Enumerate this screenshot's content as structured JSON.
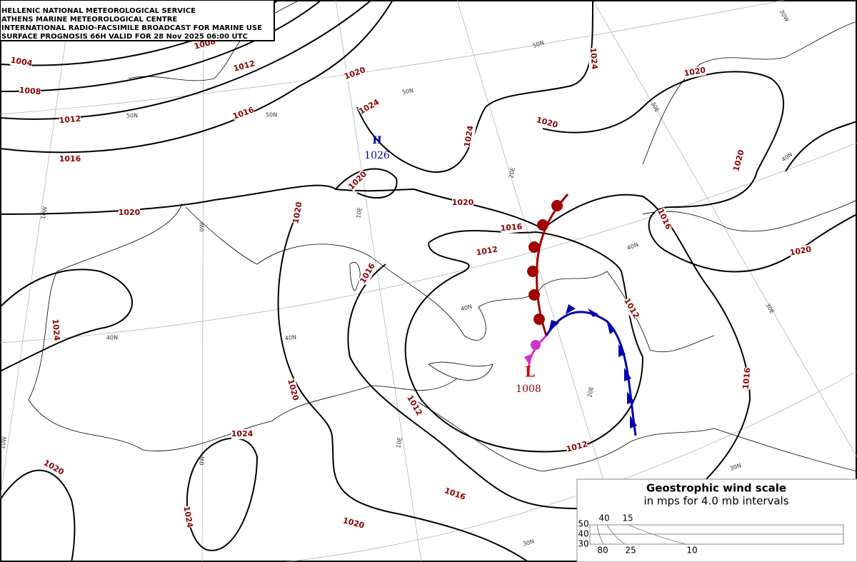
{
  "header": {
    "lines": [
      "HELLENIC NATIONAL METEOROLOGICAL SERVICE",
      "ATHENS MARINE METEOROLOGICAL CENTRE",
      "INTERNATIONAL RADIO-FACSIMILE BROADCAST FOR MARINE USE",
      "SURFACE PROGNOSIS 66H VALID FOR 28 Nov 2025 06:00 UTC"
    ]
  },
  "isobar_labels": [
    "1004",
    "1008",
    "1012",
    "1016",
    "1020",
    "1024",
    "1020",
    "1008",
    "1012",
    "1016",
    "1020",
    "1024",
    "1020",
    "1024",
    "1024",
    "1020",
    "1020",
    "1020",
    "1020",
    "1016",
    "1016",
    "1020",
    "1016",
    "1012",
    "1016",
    "1012",
    "1020",
    "1020",
    "1012",
    "1012",
    "1024",
    "1024",
    "1016",
    "1020"
  ],
  "pressure_centers": [
    {
      "letter": "H",
      "value": "1026"
    },
    {
      "letter": "L",
      "value": "1008"
    }
  ],
  "graticule_labels": [
    "30W",
    "50N",
    "50N",
    "50N",
    "50N",
    "30E",
    "40N",
    "20E",
    "10E",
    "0W",
    "10W",
    "40N",
    "40N",
    "40N",
    "40N",
    "30E",
    "20E",
    "10E",
    "0W",
    "10W",
    "30N",
    "30N"
  ],
  "wind_scale": {
    "title": "Geostrophic wind scale",
    "subtitle": "in mps for 4.0 mb intervals",
    "latitudes": [
      "50",
      "40",
      "30"
    ],
    "top_speeds": [
      "40",
      "15"
    ],
    "bottom_speeds": [
      "80",
      "25",
      "10"
    ]
  }
}
